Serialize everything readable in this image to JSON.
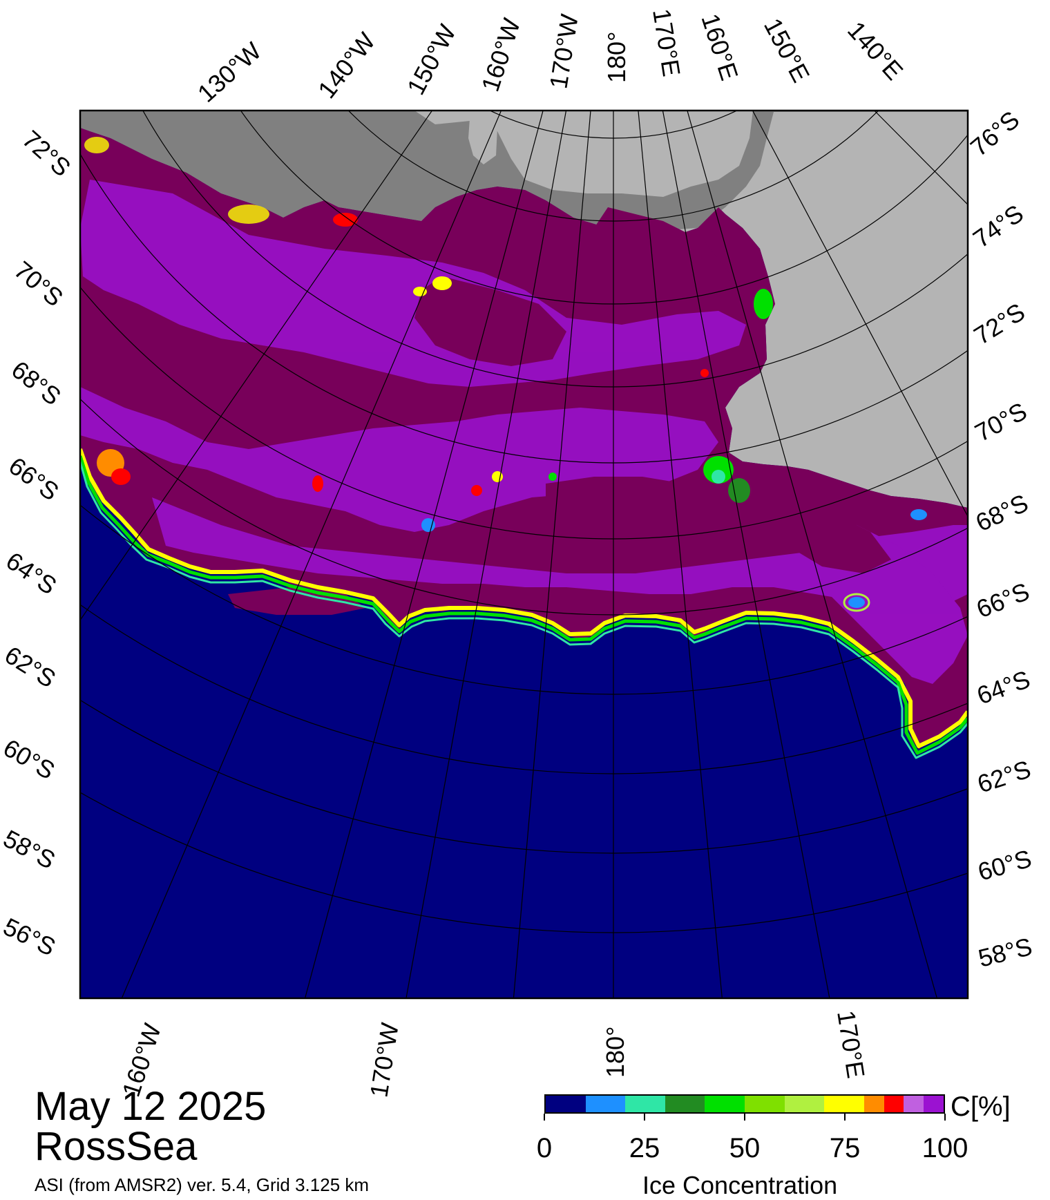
{
  "title": {
    "date": "May 12 2025",
    "region": "RossSea",
    "product": "ASI (from AMSR2) ver. 5.4,  Grid 3.125 km"
  },
  "map": {
    "projection": "polar stereographic (south)",
    "meridian_labels_top": [
      "130°W",
      "140°W",
      "150°W",
      "160°W",
      "170°W",
      "180°",
      "170°E",
      "160°E",
      "150°E",
      "140°E"
    ],
    "meridian_labels_bottom": [
      "160°W",
      "170°W",
      "180°",
      "170°E"
    ],
    "parallel_labels_left": [
      "72°S",
      "70°S",
      "68°S",
      "66°S",
      "64°S",
      "62°S",
      "60°S",
      "58°S",
      "56°S"
    ],
    "parallel_labels_right": [
      "76°S",
      "74°S",
      "72°S",
      "70°S",
      "68°S",
      "66°S",
      "64°S",
      "62°S",
      "60°S",
      "58°S"
    ],
    "colors": {
      "open_water": "#000080",
      "land": "#b4b4b4",
      "ice_shelf": "#808080",
      "pack_ice_full": "#78005a",
      "pack_ice_high": "#9b12d1",
      "grid_line": "#000000"
    }
  },
  "legend": {
    "title": "Ice Concentration",
    "unit": "C[%]",
    "tick_labels": [
      "0",
      "25",
      "50",
      "75",
      "100"
    ],
    "bins": [
      {
        "range": "0-10",
        "color": "#000080"
      },
      {
        "range": "10-20",
        "color": "#1e90ff"
      },
      {
        "range": "20-30",
        "color": "#2fe6a6"
      },
      {
        "range": "30-40",
        "color": "#228b22"
      },
      {
        "range": "40-50",
        "color": "#00e000"
      },
      {
        "range": "50-60",
        "color": "#7fe000"
      },
      {
        "range": "60-70",
        "color": "#b0f040"
      },
      {
        "range": "70-80",
        "color": "#ffff00"
      },
      {
        "range": "80-85",
        "color": "#ff8c00"
      },
      {
        "range": "85-90",
        "color": "#ff0000"
      },
      {
        "range": "90-95",
        "color": "#c060e0"
      },
      {
        "range": "95-100",
        "color": "#9b12d1"
      }
    ]
  }
}
